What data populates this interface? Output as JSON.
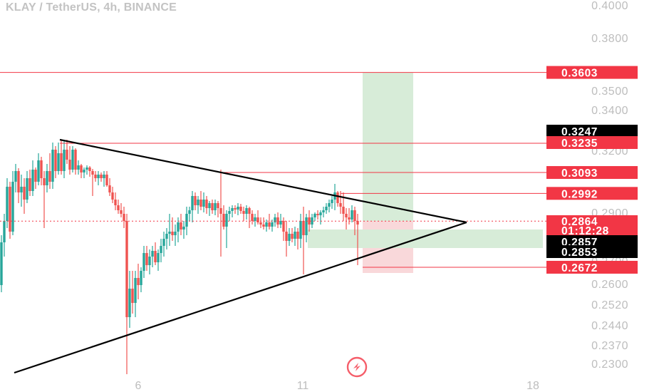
{
  "title": "KLAY / TetherUS, 4h, BINANCE",
  "chart_data": {
    "type": "candlestick",
    "symbol": "KLAY / TetherUS",
    "interval": "4h",
    "exchange": "BINANCE",
    "y_ticks": [
      "0.4000",
      "0.3800",
      "0.3500",
      "0.3400",
      "0.3200",
      "0.2900",
      "0.2700",
      "0.2600",
      "0.2520",
      "0.2440",
      "0.2370",
      "0.2300"
    ],
    "x_ticks": [
      "6",
      "11",
      "18"
    ],
    "price_lines": [
      {
        "label": "0.3603",
        "value": 0.3603,
        "color": "#f23645"
      },
      {
        "label": "0.3247",
        "value": 0.3247,
        "color": "#000000"
      },
      {
        "label": "0.3235",
        "value": 0.3235,
        "color": "#f23645"
      },
      {
        "label": "0.3093",
        "value": 0.3093,
        "color": "#f23645"
      },
      {
        "label": "0.2992",
        "value": 0.2992,
        "color": "#f23645"
      },
      {
        "label": "0.2672",
        "value": 0.2672,
        "color": "#f23645"
      }
    ],
    "current_price": {
      "label": "0.2864",
      "countdown": "01:12:28",
      "value": 0.2864,
      "color": "#f23645"
    },
    "entry_tags": [
      {
        "label": "0.2857",
        "value": 0.2857,
        "color": "#000000"
      },
      {
        "label": "0.2853",
        "value": 0.2853,
        "color": "#000000"
      }
    ],
    "pattern": "symmetrical triangle",
    "position": {
      "side": "long",
      "entry": 0.2857,
      "target": 0.3603,
      "stop": 0.2672
    },
    "colors": {
      "up": "#26a69a",
      "down": "#ef5350",
      "line": "#f23645",
      "trend": "#000000"
    }
  }
}
